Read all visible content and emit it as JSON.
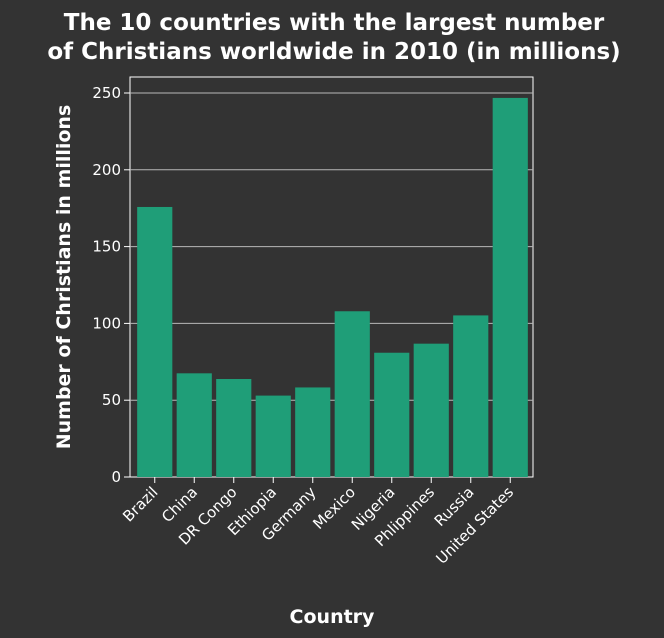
{
  "chart_data": {
    "type": "bar",
    "title_lines": [
      "The 10 countries with the largest number",
      "of Christians worldwide in 2010 (in millions)"
    ],
    "xlabel": "Country",
    "ylabel": "Number of Christians in millions",
    "categories": [
      "Brazil",
      "China",
      "DR Congo",
      "Ethiopia",
      "Germany",
      "Mexico",
      "Nigeria",
      "Phlippines",
      "Russia",
      "United States"
    ],
    "values": [
      175.8,
      67.5,
      63.8,
      53,
      58.3,
      107.9,
      80.9,
      86.8,
      105.2,
      246.8
    ],
    "yticks": [
      0,
      50,
      100,
      150,
      200,
      250
    ],
    "ylim": [
      0,
      250
    ],
    "grid": true,
    "colors": {
      "background": "#333333",
      "bar": "#1f9e78",
      "grid": "#b8b8b8",
      "text": "#ffffff"
    }
  }
}
